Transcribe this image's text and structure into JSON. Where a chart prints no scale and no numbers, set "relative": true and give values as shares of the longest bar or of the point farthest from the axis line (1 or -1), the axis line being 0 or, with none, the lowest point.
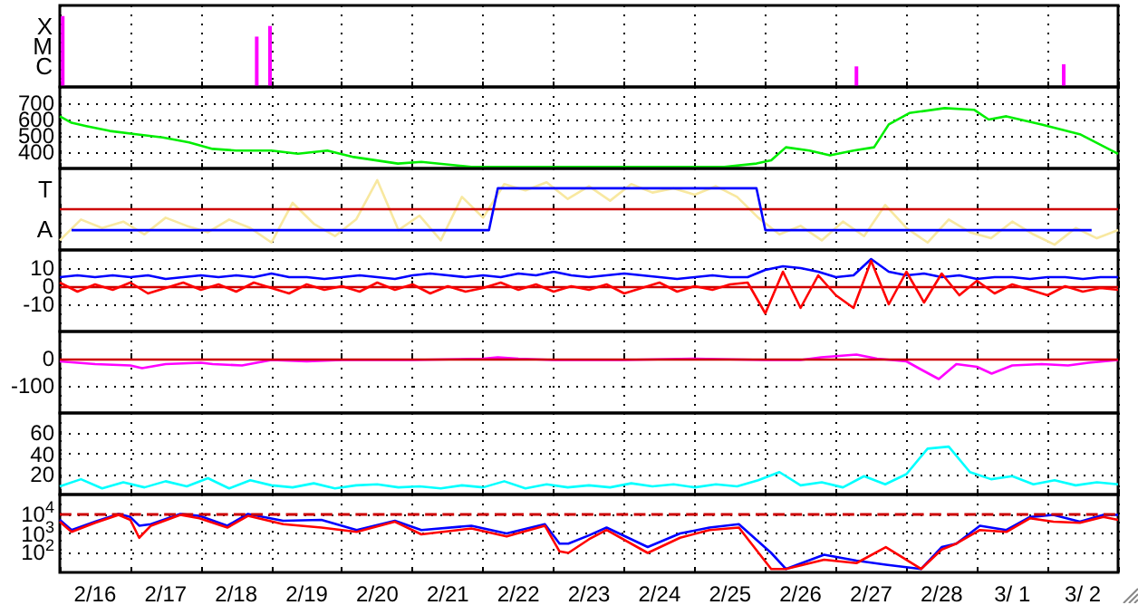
{
  "chart_data": [
    {
      "type": "bar",
      "relative": true,
      "xlim": [
        "--02-16",
        "--03-03"
      ],
      "xticks": [
        {
          "value": "--02-16",
          "label": null
        },
        {
          "value": "--02-16T12:00",
          "label": "2/16"
        },
        {
          "value": "--02-17",
          "label": null
        },
        {
          "value": "--02-17T12:00",
          "label": "2/17"
        },
        {
          "value": "--02-18",
          "label": null
        },
        {
          "value": "--02-18T12:00",
          "label": "2/18"
        },
        {
          "value": "--02-19",
          "label": null
        },
        {
          "value": "--02-19T12:00",
          "label": "2/19"
        },
        {
          "value": "--02-20",
          "label": null
        },
        {
          "value": "--02-20T12:00",
          "label": "2/20"
        },
        {
          "value": "--02-21",
          "label": null
        },
        {
          "value": "--02-21T12:00",
          "label": "2/21"
        },
        {
          "value": "--02-22",
          "label": null
        },
        {
          "value": "--02-22T12:00",
          "label": "2/22"
        },
        {
          "value": "--02-23",
          "label": null
        },
        {
          "value": "--02-23T12:00",
          "label": "2/23"
        },
        {
          "value": "--02-24",
          "label": null
        },
        {
          "value": "--02-24T12:00",
          "label": "2/24"
        },
        {
          "value": "--02-25",
          "label": null
        },
        {
          "value": "--02-25T12:00",
          "label": "2/25"
        },
        {
          "value": "--02-26",
          "label": null
        },
        {
          "value": "--02-26T12:00",
          "label": "2/26"
        },
        {
          "value": "--02-27",
          "label": null
        },
        {
          "value": "--02-27T12:00",
          "label": "2/27"
        },
        {
          "value": "--02-28",
          "label": null
        },
        {
          "value": "--02-28T12:00",
          "label": "2/28"
        },
        {
          "value": "--03-01",
          "label": null
        },
        {
          "value": "--03-01T12:00",
          "label": "3/ 1"
        },
        {
          "value": "--03-02",
          "label": null
        },
        {
          "value": "--03-02T12:00",
          "label": "3/ 2"
        },
        {
          "value": "--03-03",
          "label": null
        }
      ],
      "grid": "x",
      "tick_labels": false,
      "annotations": [
        "X",
        "M",
        "C"
      ],
      "series": [
        {
          "color": "#ff00ff",
          "x": [
            "--02-16T01:00",
            "--02-18T19:00",
            "--02-18T23:30",
            "--02-27T07:00",
            "--03-02T05:30"
          ],
          "values": [
            1,
            0.71,
            0.86,
            0.29,
            0.32
          ]
        }
      ]
    },
    {
      "type": "line",
      "xlim": [
        "--02-16",
        "--03-03"
      ],
      "xticks": [
        {
          "value": "--02-16",
          "label": null
        },
        {
          "value": "--02-16T12:00",
          "label": "2/16"
        },
        {
          "value": "--02-17",
          "label": null
        },
        {
          "value": "--02-17T12:00",
          "label": "2/17"
        },
        {
          "value": "--02-18",
          "label": null
        },
        {
          "value": "--02-18T12:00",
          "label": "2/18"
        },
        {
          "value": "--02-19",
          "label": null
        },
        {
          "value": "--02-19T12:00",
          "label": "2/19"
        },
        {
          "value": "--02-20",
          "label": null
        },
        {
          "value": "--02-20T12:00",
          "label": "2/20"
        },
        {
          "value": "--02-21",
          "label": null
        },
        {
          "value": "--02-21T12:00",
          "label": "2/21"
        },
        {
          "value": "--02-22",
          "label": null
        },
        {
          "value": "--02-22T12:00",
          "label": "2/22"
        },
        {
          "value": "--02-23",
          "label": null
        },
        {
          "value": "--02-23T12:00",
          "label": "2/23"
        },
        {
          "value": "--02-24",
          "label": null
        },
        {
          "value": "--02-24T12:00",
          "label": "2/24"
        },
        {
          "value": "--02-25",
          "label": null
        },
        {
          "value": "--02-25T12:00",
          "label": "2/25"
        },
        {
          "value": "--02-26",
          "label": null
        },
        {
          "value": "--02-26T12:00",
          "label": "2/26"
        },
        {
          "value": "--02-27",
          "label": null
        },
        {
          "value": "--02-27T12:00",
          "label": "2/27"
        },
        {
          "value": "--02-28",
          "label": null
        },
        {
          "value": "--02-28T12:00",
          "label": "2/28"
        },
        {
          "value": "--03-01",
          "label": null
        },
        {
          "value": "--03-01T12:00",
          "label": "3/ 1"
        },
        {
          "value": "--03-02",
          "label": null
        },
        {
          "value": "--03-02T12:00",
          "label": "3/ 2"
        },
        {
          "value": "--03-03",
          "label": null
        }
      ],
      "ylim": [
        300,
        800
      ],
      "yticks": [
        400,
        500,
        600,
        700
      ],
      "grid": true,
      "tick_labels": "y",
      "series": [
        {
          "color": "#00ee00",
          "x": [
            "--02-16T00:00",
            "--02-16T04:00",
            "--02-16T09:00",
            "--02-16T17:00",
            "--02-17T02:00",
            "--02-17T11:00",
            "--02-17T20:00",
            "--02-18T04:00",
            "--02-18T12:00",
            "--02-19T00:00",
            "--02-19T09:00",
            "--02-19T19:00",
            "--02-20T04:00",
            "--02-20T19:00",
            "--02-21T03:00",
            "--02-21T20:00",
            "--02-22T18:00",
            "--02-23T15:00",
            "--02-24T12:00",
            "--02-25T10:00",
            "--02-25T21:00",
            "--02-26T02:00",
            "--02-26T07:00",
            "--02-26T15:00",
            "--02-26T22:00",
            "--02-27T06:00",
            "--02-27T13:00",
            "--02-27T18:00",
            "--02-28T01:00",
            "--02-28T13:00",
            "--02-28T23:00",
            "--03-01T04:00",
            "--03-01T10:00",
            "--03-01T22:00",
            "--03-02T11:00",
            "--03-03T00:00"
          ],
          "values": [
            620,
            580,
            560,
            530,
            510,
            490,
            460,
            420,
            410,
            410,
            390,
            410,
            370,
            330,
            340,
            310,
            310,
            310,
            310,
            310,
            330,
            350,
            430,
            410,
            380,
            410,
            430,
            570,
            640,
            670,
            660,
            600,
            620,
            570,
            510,
            390
          ]
        }
      ]
    },
    {
      "type": "line",
      "relative": true,
      "xlim": [
        "--02-16",
        "--03-03"
      ],
      "xticks": [
        {
          "value": "--02-16",
          "label": null
        },
        {
          "value": "--02-16T12:00",
          "label": "2/16"
        },
        {
          "value": "--02-17",
          "label": null
        },
        {
          "value": "--02-17T12:00",
          "label": "2/17"
        },
        {
          "value": "--02-18",
          "label": null
        },
        {
          "value": "--02-18T12:00",
          "label": "2/18"
        },
        {
          "value": "--02-19",
          "label": null
        },
        {
          "value": "--02-19T12:00",
          "label": "2/19"
        },
        {
          "value": "--02-20",
          "label": null
        },
        {
          "value": "--02-20T12:00",
          "label": "2/20"
        },
        {
          "value": "--02-21",
          "label": null
        },
        {
          "value": "--02-21T12:00",
          "label": "2/21"
        },
        {
          "value": "--02-22",
          "label": null
        },
        {
          "value": "--02-22T12:00",
          "label": "2/22"
        },
        {
          "value": "--02-23",
          "label": null
        },
        {
          "value": "--02-23T12:00",
          "label": "2/23"
        },
        {
          "value": "--02-24",
          "label": null
        },
        {
          "value": "--02-24T12:00",
          "label": "2/24"
        },
        {
          "value": "--02-25",
          "label": null
        },
        {
          "value": "--02-25T12:00",
          "label": "2/25"
        },
        {
          "value": "--02-26",
          "label": null
        },
        {
          "value": "--02-26T12:00",
          "label": "2/26"
        },
        {
          "value": "--02-27",
          "label": null
        },
        {
          "value": "--02-27T12:00",
          "label": "2/27"
        },
        {
          "value": "--02-28",
          "label": null
        },
        {
          "value": "--02-28T12:00",
          "label": "2/28"
        },
        {
          "value": "--03-01",
          "label": null
        },
        {
          "value": "--03-01T12:00",
          "label": "3/ 1"
        },
        {
          "value": "--03-02",
          "label": null
        },
        {
          "value": "--03-02T12:00",
          "label": "3/ 2"
        },
        {
          "value": "--03-03",
          "label": null
        }
      ],
      "grid": "x",
      "tick_labels": false,
      "annotations": [
        "T",
        "A"
      ],
      "ref_lines": [
        {
          "axis": "y",
          "value": 0,
          "color": "#cc0000"
        }
      ],
      "x": [
        "--02-16T00:00",
        "--02-16T07:12",
        "--02-16T14:24",
        "--02-16T21:36",
        "--02-17T04:48",
        "--02-17T12:00",
        "--02-17T19:12",
        "--02-18T02:24",
        "--02-18T09:36",
        "--02-18T16:48",
        "--02-19T00:00",
        "--02-19T07:12",
        "--02-19T14:24",
        "--02-19T21:36",
        "--02-20T04:48",
        "--02-20T12:00",
        "--02-20T19:12",
        "--02-21T02:24",
        "--02-21T09:36",
        "--02-21T16:48",
        "--02-22T00:00",
        "--02-22T07:12",
        "--02-22T14:24",
        "--02-22T21:36",
        "--02-23T04:48",
        "--02-23T12:00",
        "--02-23T19:12",
        "--02-24T02:24",
        "--02-24T09:36",
        "--02-24T16:48",
        "--02-25T00:00",
        "--02-25T07:12",
        "--02-25T14:24",
        "--02-25T21:36",
        "--02-26T04:48",
        "--02-26T12:00",
        "--02-26T19:12",
        "--02-27T02:24",
        "--02-27T09:36",
        "--02-27T16:48",
        "--02-28T00:00",
        "--02-28T07:12",
        "--02-28T14:24",
        "--02-28T21:36",
        "--03-01T04:48",
        "--03-01T12:00",
        "--03-01T19:12",
        "--03-02T02:24",
        "--03-02T09:36",
        "--03-02T16:48",
        "--03-03T00:00"
      ],
      "series": [
        {
          "color": "#f8e8a0",
          "values": [
            -0.88,
            -0.29,
            -0.53,
            -0.35,
            -0.71,
            -0.24,
            -0.47,
            -0.65,
            -0.29,
            -0.53,
            -0.94,
            0.18,
            -0.41,
            -0.76,
            -0.29,
            0.82,
            -0.59,
            -0.18,
            -0.88,
            0.35,
            -0.24,
            0.71,
            0.53,
            0.76,
            0.29,
            0.65,
            0.24,
            0.71,
            0.47,
            0.59,
            0.41,
            0.65,
            0.35,
            -0.24,
            -0.71,
            -0.47,
            -0.88,
            -0.35,
            -0.76,
            0.12,
            -0.53,
            -0.94,
            -0.29,
            -0.65,
            -0.82,
            -0.35,
            -0.71,
            -1,
            -0.53,
            -0.82,
            -0.59
          ]
        },
        {
          "color": "#0000ff",
          "x": [
            "--02-16T04:00",
            "--02-22T02:00",
            "--02-22T05:00",
            "--02-25T21:00",
            "--02-26T00:00",
            "--03-02T15:00"
          ],
          "values": [
            -0.59,
            -0.59,
            0.59,
            0.59,
            -0.59,
            -0.59
          ]
        }
      ]
    },
    {
      "type": "line",
      "xlim": [
        "--02-16",
        "--03-03"
      ],
      "xticks": [
        {
          "value": "--02-16",
          "label": null
        },
        {
          "value": "--02-16T12:00",
          "label": "2/16"
        },
        {
          "value": "--02-17",
          "label": null
        },
        {
          "value": "--02-17T12:00",
          "label": "2/17"
        },
        {
          "value": "--02-18",
          "label": null
        },
        {
          "value": "--02-18T12:00",
          "label": "2/18"
        },
        {
          "value": "--02-19",
          "label": null
        },
        {
          "value": "--02-19T12:00",
          "label": "2/19"
        },
        {
          "value": "--02-20",
          "label": null
        },
        {
          "value": "--02-20T12:00",
          "label": "2/20"
        },
        {
          "value": "--02-21",
          "label": null
        },
        {
          "value": "--02-21T12:00",
          "label": "2/21"
        },
        {
          "value": "--02-22",
          "label": null
        },
        {
          "value": "--02-22T12:00",
          "label": "2/22"
        },
        {
          "value": "--02-23",
          "label": null
        },
        {
          "value": "--02-23T12:00",
          "label": "2/23"
        },
        {
          "value": "--02-24",
          "label": null
        },
        {
          "value": "--02-24T12:00",
          "label": "2/24"
        },
        {
          "value": "--02-25",
          "label": null
        },
        {
          "value": "--02-25T12:00",
          "label": "2/25"
        },
        {
          "value": "--02-26",
          "label": null
        },
        {
          "value": "--02-26T12:00",
          "label": "2/26"
        },
        {
          "value": "--02-27",
          "label": null
        },
        {
          "value": "--02-27T12:00",
          "label": "2/27"
        },
        {
          "value": "--02-28",
          "label": null
        },
        {
          "value": "--02-28T12:00",
          "label": "2/28"
        },
        {
          "value": "--03-01",
          "label": null
        },
        {
          "value": "--03-01T12:00",
          "label": "3/ 1"
        },
        {
          "value": "--03-02",
          "label": null
        },
        {
          "value": "--03-02T12:00",
          "label": "3/ 2"
        },
        {
          "value": "--03-03",
          "label": null
        }
      ],
      "ylim": [
        -25,
        20
      ],
      "yticks": [
        -10,
        0,
        10
      ],
      "grid": true,
      "tick_labels": "y",
      "ref_lines": [
        {
          "axis": "y",
          "value": 0,
          "color": "#cc0000"
        }
      ],
      "x": [
        "--02-16T00:00",
        "--02-16T06:00",
        "--02-16T12:00",
        "--02-16T18:00",
        "--02-17T00:00",
        "--02-17T06:00",
        "--02-17T12:00",
        "--02-17T18:00",
        "--02-18T00:00",
        "--02-18T06:00",
        "--02-18T12:00",
        "--02-18T18:00",
        "--02-19T00:00",
        "--02-19T06:00",
        "--02-19T12:00",
        "--02-19T18:00",
        "--02-20T00:00",
        "--02-20T06:00",
        "--02-20T12:00",
        "--02-20T18:00",
        "--02-21T00:00",
        "--02-21T06:00",
        "--02-21T12:00",
        "--02-21T18:00",
        "--02-22T00:00",
        "--02-22T06:00",
        "--02-22T12:00",
        "--02-22T18:00",
        "--02-23T00:00",
        "--02-23T06:00",
        "--02-23T12:00",
        "--02-23T18:00",
        "--02-24T00:00",
        "--02-24T06:00",
        "--02-24T12:00",
        "--02-24T18:00",
        "--02-25T00:00",
        "--02-25T06:00",
        "--02-25T12:00",
        "--02-25T18:00",
        "--02-26T00:00",
        "--02-26T06:00",
        "--02-26T12:00",
        "--02-26T18:00",
        "--02-27T00:00",
        "--02-27T06:00",
        "--02-27T12:00",
        "--02-27T18:00",
        "--02-28T00:00",
        "--02-28T06:00",
        "--02-28T12:00",
        "--02-28T18:00",
        "--03-01T00:00",
        "--03-01T06:00",
        "--03-01T12:00",
        "--03-01T18:00",
        "--03-02T00:00",
        "--03-02T06:00",
        "--03-02T12:00",
        "--03-02T18:00",
        "--03-03T00:00"
      ],
      "series": [
        {
          "color": "#0000ff",
          "values": [
            5,
            6,
            5,
            6,
            5,
            6,
            4,
            5,
            6,
            5,
            6,
            5,
            7,
            5,
            5,
            4,
            5,
            6,
            5,
            4,
            6,
            7,
            6,
            5,
            6,
            5,
            7,
            6,
            8,
            6,
            5,
            6,
            7,
            6,
            5,
            4,
            5,
            6,
            5,
            5,
            9,
            11,
            10,
            8,
            5,
            6,
            15,
            8,
            6,
            7,
            5,
            6,
            4,
            5,
            5,
            4,
            5,
            5,
            4,
            5,
            5
          ]
        },
        {
          "color": "#ff0000",
          "values": [
            2,
            -3,
            1,
            -2,
            2,
            -4,
            -1,
            2,
            -2,
            1,
            -3,
            2,
            -1,
            -4,
            1,
            -2,
            0,
            -3,
            2,
            -2,
            1,
            -4,
            0,
            -3,
            -1,
            2,
            -2,
            1,
            -3,
            0,
            -2,
            1,
            -4,
            -1,
            2,
            -3,
            0,
            -2,
            1,
            2,
            -15,
            8,
            -12,
            6,
            -5,
            -12,
            14,
            -10,
            8,
            -9,
            7,
            -5,
            3,
            -4,
            1,
            -2,
            -5,
            0,
            -3,
            -1,
            -2
          ]
        }
      ]
    },
    {
      "type": "line",
      "xlim": [
        "--02-16",
        "--03-03"
      ],
      "xticks": [
        {
          "value": "--02-16",
          "label": null
        },
        {
          "value": "--02-16T12:00",
          "label": "2/16"
        },
        {
          "value": "--02-17",
          "label": null
        },
        {
          "value": "--02-17T12:00",
          "label": "2/17"
        },
        {
          "value": "--02-18",
          "label": null
        },
        {
          "value": "--02-18T12:00",
          "label": "2/18"
        },
        {
          "value": "--02-19",
          "label": null
        },
        {
          "value": "--02-19T12:00",
          "label": "2/19"
        },
        {
          "value": "--02-20",
          "label": null
        },
        {
          "value": "--02-20T12:00",
          "label": "2/20"
        },
        {
          "value": "--02-21",
          "label": null
        },
        {
          "value": "--02-21T12:00",
          "label": "2/21"
        },
        {
          "value": "--02-22",
          "label": null
        },
        {
          "value": "--02-22T12:00",
          "label": "2/22"
        },
        {
          "value": "--02-23",
          "label": null
        },
        {
          "value": "--02-23T12:00",
          "label": "2/23"
        },
        {
          "value": "--02-24",
          "label": null
        },
        {
          "value": "--02-24T12:00",
          "label": "2/24"
        },
        {
          "value": "--02-25",
          "label": null
        },
        {
          "value": "--02-25T12:00",
          "label": "2/25"
        },
        {
          "value": "--02-26",
          "label": null
        },
        {
          "value": "--02-26T12:00",
          "label": "2/26"
        },
        {
          "value": "--02-27",
          "label": null
        },
        {
          "value": "--02-27T12:00",
          "label": "2/27"
        },
        {
          "value": "--02-28",
          "label": null
        },
        {
          "value": "--02-28T12:00",
          "label": "2/28"
        },
        {
          "value": "--03-01",
          "label": null
        },
        {
          "value": "--03-01T12:00",
          "label": "3/ 1"
        },
        {
          "value": "--03-02",
          "label": null
        },
        {
          "value": "--03-02T12:00",
          "label": "3/ 2"
        },
        {
          "value": "--03-03",
          "label": null
        }
      ],
      "ylim": [
        -200,
        100
      ],
      "yticks": [
        -100,
        0
      ],
      "grid": true,
      "tick_labels": "y",
      "ref_lines": [
        {
          "axis": "y",
          "value": 0,
          "color": "#cc0000"
        }
      ],
      "series": [
        {
          "color": "#ff00ff",
          "x": [
            "--02-16T00:00",
            "--02-16T12:00",
            "--02-17T00:00",
            "--02-17T04:00",
            "--02-17T12:00",
            "--02-18T00:00",
            "--02-18T04:00",
            "--02-18T14:00",
            "--02-19T00:00",
            "--02-19T12:00",
            "--02-20T00:00",
            "--02-21T00:00",
            "--02-22T00:00",
            "--02-22T05:00",
            "--02-22T12:00",
            "--02-23T00:00",
            "--02-24T00:00",
            "--02-25T00:00",
            "--02-26T00:00",
            "--02-26T12:00",
            "--02-26T19:00",
            "--02-27T07:00",
            "--02-27T14:00",
            "--02-28T00:00",
            "--02-28T05:00",
            "--02-28T11:00",
            "--02-28T17:00",
            "--03-01T00:00",
            "--03-01T05:00",
            "--03-01T12:00",
            "--03-01T22:00",
            "--03-02T07:00",
            "--03-02T14:00",
            "--03-03T00:00"
          ],
          "values": [
            -10,
            -20,
            -25,
            -35,
            -20,
            -15,
            -20,
            -25,
            -5,
            -10,
            -5,
            -5,
            0,
            5,
            0,
            -5,
            -5,
            0,
            -5,
            -5,
            5,
            15,
            0,
            -10,
            -40,
            -75,
            -20,
            -30,
            -55,
            -25,
            -20,
            -25,
            -15,
            -5
          ]
        }
      ]
    },
    {
      "type": "line",
      "xlim": [
        "--02-16",
        "--03-03"
      ],
      "xticks": [
        {
          "value": "--02-16",
          "label": null
        },
        {
          "value": "--02-16T12:00",
          "label": "2/16"
        },
        {
          "value": "--02-17",
          "label": null
        },
        {
          "value": "--02-17T12:00",
          "label": "2/17"
        },
        {
          "value": "--02-18",
          "label": null
        },
        {
          "value": "--02-18T12:00",
          "label": "2/18"
        },
        {
          "value": "--02-19",
          "label": null
        },
        {
          "value": "--02-19T12:00",
          "label": "2/19"
        },
        {
          "value": "--02-20",
          "label": null
        },
        {
          "value": "--02-20T12:00",
          "label": "2/20"
        },
        {
          "value": "--02-21",
          "label": null
        },
        {
          "value": "--02-21T12:00",
          "label": "2/21"
        },
        {
          "value": "--02-22",
          "label": null
        },
        {
          "value": "--02-22T12:00",
          "label": "2/22"
        },
        {
          "value": "--02-23",
          "label": null
        },
        {
          "value": "--02-23T12:00",
          "label": "2/23"
        },
        {
          "value": "--02-24",
          "label": null
        },
        {
          "value": "--02-24T12:00",
          "label": "2/24"
        },
        {
          "value": "--02-25",
          "label": null
        },
        {
          "value": "--02-25T12:00",
          "label": "2/25"
        },
        {
          "value": "--02-26",
          "label": null
        },
        {
          "value": "--02-26T12:00",
          "label": "2/26"
        },
        {
          "value": "--02-27",
          "label": null
        },
        {
          "value": "--02-27T12:00",
          "label": "2/27"
        },
        {
          "value": "--02-28",
          "label": null
        },
        {
          "value": "--02-28T12:00",
          "label": "2/28"
        },
        {
          "value": "--03-01",
          "label": null
        },
        {
          "value": "--03-01T12:00",
          "label": "3/ 1"
        },
        {
          "value": "--03-02",
          "label": null
        },
        {
          "value": "--03-02T12:00",
          "label": "3/ 2"
        },
        {
          "value": "--03-03",
          "label": null
        }
      ],
      "ylim": [
        0,
        80
      ],
      "yticks": [
        20,
        40,
        60
      ],
      "grid": true,
      "tick_labels": "y",
      "x": [
        "--02-16T00:00",
        "--02-16T07:12",
        "--02-16T14:24",
        "--02-16T21:36",
        "--02-17T04:48",
        "--02-17T12:00",
        "--02-17T19:12",
        "--02-18T02:24",
        "--02-18T09:36",
        "--02-18T16:48",
        "--02-19T00:00",
        "--02-19T07:12",
        "--02-19T14:24",
        "--02-19T21:36",
        "--02-20T04:48",
        "--02-20T12:00",
        "--02-20T19:12",
        "--02-21T02:24",
        "--02-21T09:36",
        "--02-21T16:48",
        "--02-22T00:00",
        "--02-22T07:12",
        "--02-22T14:24",
        "--02-22T21:36",
        "--02-23T04:48",
        "--02-23T12:00",
        "--02-23T19:12",
        "--02-24T02:24",
        "--02-24T09:36",
        "--02-24T16:48",
        "--02-25T00:00",
        "--02-25T07:12",
        "--02-25T14:24",
        "--02-25T21:36",
        "--02-26T04:48",
        "--02-26T12:00",
        "--02-26T19:12",
        "--02-27T02:24",
        "--02-27T09:36",
        "--02-27T16:48",
        "--02-28T00:00",
        "--02-28T07:12",
        "--02-28T14:24",
        "--02-28T21:36",
        "--03-01T04:48",
        "--03-01T12:00",
        "--03-01T19:12",
        "--03-02T02:24",
        "--03-02T09:36",
        "--03-02T16:48",
        "--03-03T00:00"
      ],
      "series": [
        {
          "color": "#00ffff",
          "values": [
            8,
            15,
            6,
            12,
            7,
            13,
            8,
            16,
            6,
            14,
            9,
            7,
            11,
            6,
            9,
            10,
            7,
            8,
            6,
            9,
            7,
            13,
            6,
            10,
            7,
            9,
            7,
            11,
            8,
            10,
            7,
            10,
            8,
            14,
            22,
            9,
            12,
            7,
            18,
            10,
            20,
            45,
            47,
            22,
            15,
            18,
            10,
            14,
            9,
            12,
            10
          ]
        }
      ]
    },
    {
      "type": "line",
      "xlim": [
        "--02-16",
        "--03-03"
      ],
      "xticks": [
        {
          "value": "--02-16",
          "label": null
        },
        {
          "value": "--02-16T12:00",
          "label": "2/16"
        },
        {
          "value": "--02-17",
          "label": null
        },
        {
          "value": "--02-17T12:00",
          "label": "2/17"
        },
        {
          "value": "--02-18",
          "label": null
        },
        {
          "value": "--02-18T12:00",
          "label": "2/18"
        },
        {
          "value": "--02-19",
          "label": null
        },
        {
          "value": "--02-19T12:00",
          "label": "2/19"
        },
        {
          "value": "--02-20",
          "label": null
        },
        {
          "value": "--02-20T12:00",
          "label": "2/20"
        },
        {
          "value": "--02-21",
          "label": null
        },
        {
          "value": "--02-21T12:00",
          "label": "2/21"
        },
        {
          "value": "--02-22",
          "label": null
        },
        {
          "value": "--02-22T12:00",
          "label": "2/22"
        },
        {
          "value": "--02-23",
          "label": null
        },
        {
          "value": "--02-23T12:00",
          "label": "2/23"
        },
        {
          "value": "--02-24",
          "label": null
        },
        {
          "value": "--02-24T12:00",
          "label": "2/24"
        },
        {
          "value": "--02-25",
          "label": null
        },
        {
          "value": "--02-25T12:00",
          "label": "2/25"
        },
        {
          "value": "--02-26",
          "label": null
        },
        {
          "value": "--02-26T12:00",
          "label": "2/26"
        },
        {
          "value": "--02-27",
          "label": null
        },
        {
          "value": "--02-27T12:00",
          "label": "2/27"
        },
        {
          "value": "--02-28",
          "label": null
        },
        {
          "value": "--02-28T12:00",
          "label": "2/28"
        },
        {
          "value": "--03-01",
          "label": null
        },
        {
          "value": "--03-01T12:00",
          "label": "3/ 1"
        },
        {
          "value": "--03-02",
          "label": null
        },
        {
          "value": "--03-02T12:00",
          "label": "3/ 2"
        },
        {
          "value": "--03-03",
          "label": null
        }
      ],
      "ylim": [
        10,
        100000
      ],
      "yticks": [
        {
          "value": 100,
          "label": "10$^{2}$"
        },
        {
          "value": 1000,
          "label": "10$^{3}$"
        },
        {
          "value": 10000,
          "label": "10$^{4}$"
        }
      ],
      "log": true,
      "grid": true,
      "ref_lines": [
        {
          "axis": "y",
          "value": 10000,
          "color": "#cc0000",
          "line_style": "dashed"
        }
      ],
      "x": [
        "--02-16T00:00",
        "--02-16T04:00",
        "--02-16T12:00",
        "--02-16T20:00",
        "--02-17T00:00",
        "--02-17T03:00",
        "--02-17T07:00",
        "--02-17T17:00",
        "--02-17T23:30",
        "--02-18T09:00",
        "--02-18T16:00",
        "--02-19T04:00",
        "--02-19T17:00",
        "--02-20T05:00",
        "--02-20T18:00",
        "--02-21T03:00",
        "--02-21T20:00",
        "--02-22T08:00",
        "--02-22T21:00",
        "--02-23T02:00",
        "--02-23T05:00",
        "--02-23T12:00",
        "--02-23T18:00",
        "--02-24T08:00",
        "--02-24T19:00",
        "--02-25T05:00",
        "--02-25T15:00",
        "--02-26T02:00",
        "--02-26T07:00",
        "--02-26T20:00",
        "--02-27T07:00",
        "--02-27T17:00",
        "--02-28T05:00",
        "--02-28T12:00",
        "--02-28T17:00",
        "--03-01T01:00",
        "--03-01T10:00",
        "--03-01T18:00",
        "--03-02T02:00",
        "--03-02T11:00",
        "--03-02T19:00",
        "--03-03T00:00"
      ],
      "series": [
        {
          "color": "#0000ff",
          "values": [
            5000,
            1500,
            4000,
            10000,
            7000,
            2500,
            3000,
            10000,
            8000,
            2500,
            10000,
            4500,
            5000,
            1500,
            4500,
            1500,
            2500,
            1000,
            3000,
            300,
            300,
            800,
            2000,
            200,
            1000,
            2000,
            3000,
            100,
            15,
            80,
            40,
            25,
            15,
            200,
            300,
            2500,
            1500,
            7000,
            9000,
            4000,
            9000,
            9000
          ]
        },
        {
          "color": "#ff0000",
          "values": [
            4000,
            1200,
            3500,
            9000,
            5000,
            600,
            2500,
            9000,
            6000,
            2000,
            8000,
            3000,
            2000,
            1200,
            4000,
            900,
            1800,
            700,
            2500,
            120,
            100,
            500,
            1500,
            100,
            600,
            1500,
            2000,
            15,
            15,
            45,
            30,
            200,
            15,
            150,
            300,
            1500,
            1200,
            6000,
            4000,
            3500,
            7000,
            5000
          ]
        }
      ]
    }
  ]
}
